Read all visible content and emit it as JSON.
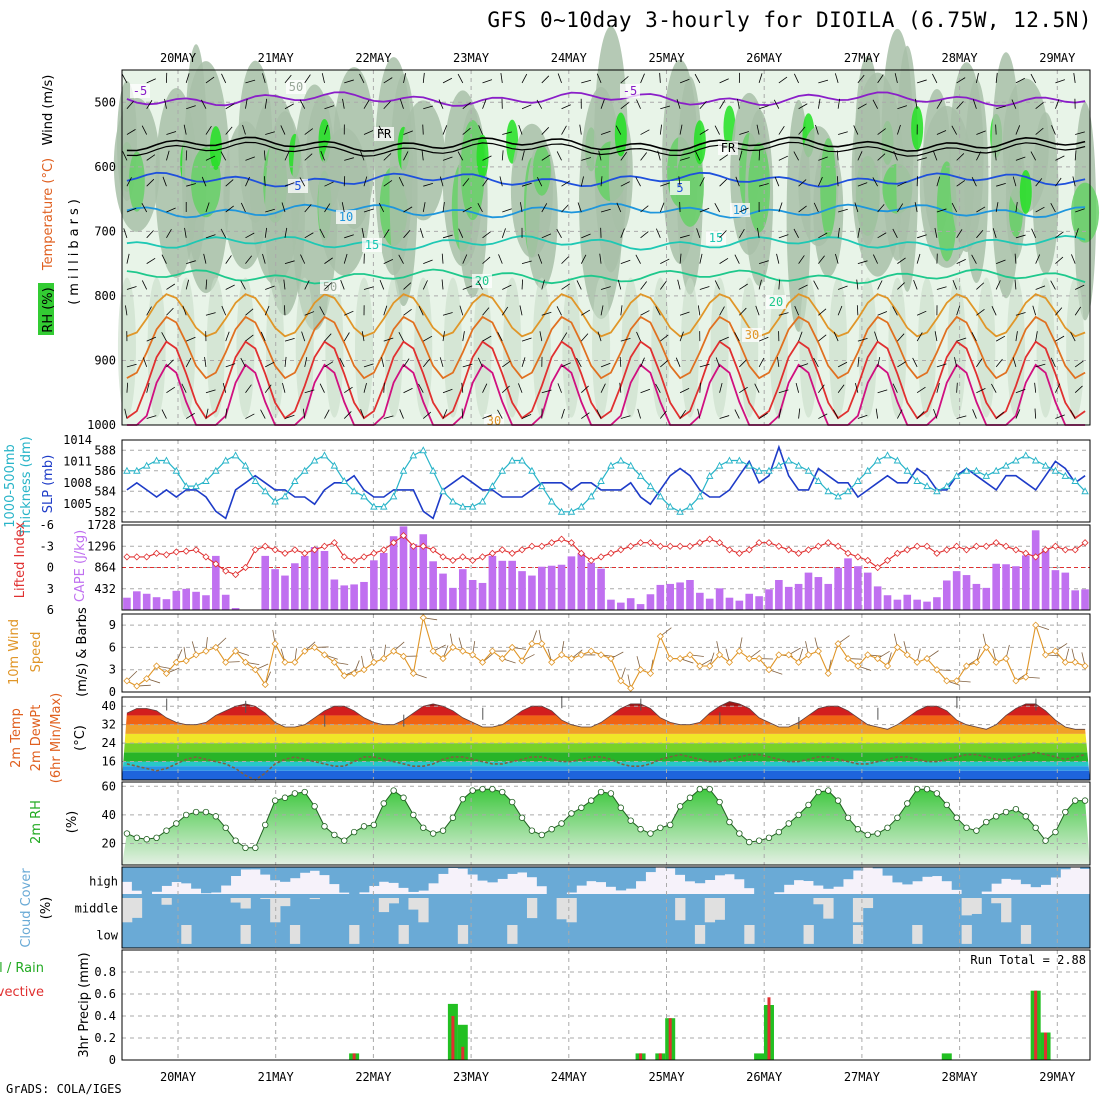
{
  "title": "GFS 0~10day 3-hourly for DIOILA (6.75W, 12.5N)",
  "footer": "GrADS: COLA/IGES",
  "colors": {
    "rh_light": "#e8f4e8",
    "rh_mid": "#c8dcc8",
    "rh_dark": "#a8c0a8",
    "rh_green": "#66d066",
    "rh_bright": "#22e022",
    "slp": "#1e3cc8",
    "thickness": "#28b4c8",
    "cape": "#c070f0",
    "lifted": "#e03030",
    "wind": "#e09628",
    "dewpt": "#806040",
    "cloud": "#6aaad6",
    "cloud_clear": "#e0e0e0",
    "precip_total": "#22c022",
    "precip_conv": "#e03030"
  },
  "chart_data": [
    {
      "type": "line",
      "panel": "upper-air",
      "title": "",
      "ylabel_parts": [
        "RH (%)",
        "Temperature (°C)",
        "Wind (m/s)"
      ],
      "ylabel_unit": "(millibars)",
      "x_ticks": [
        "20MAY",
        "21MAY",
        "22MAY",
        "23MAY",
        "24MAY",
        "25MAY",
        "26MAY",
        "27MAY",
        "28MAY",
        "29MAY"
      ],
      "y_ticks": [
        500,
        600,
        700,
        800,
        900,
        1000
      ],
      "ylim": [
        1000,
        450
      ],
      "contour_labels": [
        "-5",
        "-5",
        "FR",
        "FR",
        "5",
        "5",
        "10",
        "10",
        "15",
        "15",
        "20",
        "20",
        "30",
        "30",
        "50",
        "50"
      ],
      "isotherms": [
        {
          "label": "-5",
          "mb": 495
        },
        {
          "label": "FR",
          "mb": 565
        },
        {
          "label": "5",
          "mb": 620
        },
        {
          "label": "10",
          "mb": 668
        },
        {
          "label": "15",
          "mb": 718
        },
        {
          "label": "20",
          "mb": 770
        }
      ]
    },
    {
      "type": "line",
      "panel": "thickness-slp",
      "ylabel_left": "1000-500mb Thickness (dm)",
      "ylabel_right": "SLP (mb)",
      "left_ticks": [
        582,
        584,
        586,
        588
      ],
      "right_ticks": [
        1005,
        1008,
        1011,
        1014
      ],
      "slp": [
        1007,
        1008,
        1007,
        1006,
        1007,
        1006,
        1007,
        1007,
        1006,
        1004,
        1003,
        1007,
        1008,
        1009,
        1008,
        1007,
        1007,
        1006,
        1006,
        1005,
        1007,
        1008,
        1008,
        1009,
        1007,
        1006,
        1006,
        1007,
        1007,
        1007,
        1004,
        1003,
        1007,
        1008,
        1009,
        1008,
        1007,
        1007,
        1006,
        1006,
        1006,
        1007,
        1008,
        1008,
        1008,
        1007,
        1008,
        1008,
        1007,
        1007,
        1007,
        1008,
        1006,
        1005,
        1007,
        1009,
        1010,
        1009,
        1007,
        1006,
        1006,
        1007,
        1009,
        1011,
        1008,
        1009,
        1013,
        1009,
        1007,
        1007,
        1010,
        1009,
        1008,
        1008,
        1006,
        1007,
        1008,
        1009,
        1008,
        1008,
        1010,
        1009,
        1007,
        1007,
        1009,
        1010,
        1009,
        1008,
        1007,
        1009,
        1009,
        1008,
        1007,
        1009,
        1011,
        1010,
        1008,
        1009
      ],
      "thickness": [
        586,
        586,
        586.5,
        587,
        587,
        586,
        584.5,
        584.5,
        585,
        586,
        587,
        587.5,
        586.5,
        585,
        584,
        583,
        583.5,
        585,
        586,
        587,
        587.5,
        586.5,
        585,
        584,
        583.5,
        582.5,
        582.5,
        583.5,
        586,
        587.5,
        588,
        586,
        584,
        583,
        582.5,
        582.5,
        583,
        584.5,
        586,
        587,
        587,
        586,
        584.5,
        583,
        582,
        582,
        582.5,
        583.5,
        585,
        586.5,
        587,
        586.5,
        585.5,
        584.5,
        583.5,
        582.5,
        582,
        582.5,
        583.5,
        585.5,
        586.5,
        587,
        587,
        586.5,
        586,
        586,
        586.5,
        587,
        586.5,
        586,
        585,
        584,
        583.5,
        584,
        585,
        586,
        587,
        587.5,
        587,
        586,
        585,
        584.5,
        584,
        584.5,
        585.5,
        586,
        586,
        585.5,
        586,
        586.5,
        587,
        587.5,
        587,
        586.5,
        586,
        585.5,
        585,
        584
      ]
    },
    {
      "type": "bar",
      "panel": "cape-lifted",
      "ylabel_left": "Lifted Index",
      "ylabel_right": "CAPE (J/kg)",
      "left_ticks": [
        -6,
        -3,
        0,
        3,
        6
      ],
      "right_ticks": [
        432,
        864,
        1296,
        1728
      ],
      "cape": [
        250,
        380,
        330,
        260,
        220,
        390,
        430,
        370,
        300,
        1100,
        310,
        40,
        0,
        0,
        1100,
        830,
        700,
        950,
        1100,
        1280,
        1200,
        620,
        500,
        520,
        570,
        1010,
        1160,
        1500,
        1700,
        1340,
        1540,
        990,
        740,
        450,
        830,
        610,
        550,
        1100,
        1000,
        1000,
        790,
        700,
        880,
        900,
        920,
        1090,
        1150,
        960,
        840,
        210,
        150,
        240,
        120,
        320,
        510,
        530,
        560,
        610,
        350,
        230,
        440,
        250,
        190,
        330,
        280,
        420,
        610,
        470,
        530,
        760,
        670,
        530,
        860,
        1050,
        890,
        760,
        480,
        300,
        210,
        310,
        210,
        170,
        260,
        600,
        790,
        710,
        530,
        450,
        940,
        930,
        890,
        1110,
        1620,
        1250,
        810,
        760,
        400,
        420
      ],
      "lifted": [
        -1.5,
        -1.5,
        -1.5,
        -2,
        -1.8,
        -2.2,
        -2.3,
        -2.5,
        -1.5,
        -0.5,
        0.5,
        1,
        0,
        -2.5,
        -3,
        -2.5,
        -2,
        -2.5,
        -2,
        -2.5,
        -3,
        -3.5,
        -1.5,
        -1,
        -1.5,
        -2,
        -2.5,
        -3.5,
        -4.5,
        -3,
        -3,
        -2.5,
        -1.5,
        -1,
        -1.5,
        -1,
        -1.5,
        -2,
        -2.5,
        -2,
        -2.5,
        -3,
        -3,
        -3.5,
        -4,
        -3.5,
        -2,
        -1,
        -1.5,
        -2,
        -2.5,
        -3,
        -3.5,
        -3.5,
        -3,
        -3,
        -3,
        -3,
        -3.5,
        -4,
        -3.5,
        -2.5,
        -2,
        -2.5,
        -3.5,
        -3.5,
        -3,
        -2.5,
        -2,
        -2.5,
        -3,
        -3.5,
        -3,
        -2,
        -1.5,
        -1,
        0,
        -1,
        -2,
        -2.5,
        -3,
        -3,
        -2,
        -2.5,
        -3,
        -2.5,
        -3,
        -3,
        -3.5,
        -3,
        -2.5,
        -2,
        -1.5,
        -2.5,
        -3,
        -2.5,
        -2.5,
        -3.5
      ]
    },
    {
      "type": "line",
      "panel": "10m-wind",
      "ylabel": "10m Wind Speed (m/s) & Barbs",
      "y_ticks": [
        0,
        3,
        6,
        9
      ],
      "speed": [
        1.5,
        0.8,
        1.8,
        3.5,
        2.5,
        4,
        4.2,
        5,
        5.5,
        6,
        4,
        5.5,
        4,
        3,
        1,
        6.5,
        4,
        4,
        5.5,
        6,
        5,
        4,
        2.2,
        2.5,
        3,
        4,
        4.5,
        5.5,
        4.8,
        2.5,
        10,
        5.5,
        4.5,
        6,
        5.5,
        5,
        4,
        5.5,
        4.5,
        6,
        4.2,
        6.5,
        6.5,
        4,
        5,
        4.5,
        5,
        5.5,
        5,
        4.5,
        1.5,
        0.5,
        3,
        2.5,
        7.5,
        4.5,
        4.5,
        5,
        3.5,
        3.5,
        5,
        4,
        5.5,
        4.5,
        4.5,
        3,
        5,
        5,
        4,
        5,
        5.5,
        2.5,
        6.5,
        4.5,
        3.5,
        5,
        4.5,
        3.5,
        6,
        5,
        4,
        4.5,
        3,
        1.5,
        1.5,
        3.5,
        4,
        6,
        4,
        4.5,
        1.5,
        2,
        9,
        5,
        5.5,
        4,
        4,
        3.5
      ]
    },
    {
      "type": "area",
      "panel": "2m-temp",
      "ylabel": "2m Temp 2m DewPt (6hr Min/Max) (°C)",
      "y_ticks": [
        16,
        24,
        32,
        40
      ],
      "temp": [
        37,
        39,
        39,
        38,
        35,
        33,
        32,
        32,
        33,
        36,
        38,
        40,
        41,
        40,
        37,
        33,
        31,
        31,
        32,
        35,
        38,
        40,
        40,
        38,
        35,
        33,
        32,
        32,
        34,
        37,
        40,
        41,
        40,
        38,
        35,
        33,
        31,
        31,
        32,
        35,
        38,
        40,
        40,
        38,
        34,
        32,
        31,
        31,
        33,
        36,
        39,
        41,
        41,
        39,
        35,
        33,
        32,
        32,
        33,
        37,
        40,
        42,
        41,
        39,
        35,
        33,
        31,
        31,
        33,
        36,
        39,
        40,
        40,
        38,
        35,
        32,
        31,
        30,
        32,
        35,
        38,
        40,
        40,
        38,
        34,
        32,
        31,
        30,
        32,
        36,
        39,
        41,
        41,
        38,
        34,
        31,
        30,
        30
      ],
      "dewpt": [
        15,
        14,
        13,
        12,
        13,
        15,
        17,
        18,
        17,
        16,
        15,
        13,
        10,
        8,
        11,
        15,
        17,
        18,
        17,
        16,
        15,
        14,
        14,
        16,
        18,
        18,
        17,
        16,
        15,
        14,
        14,
        15,
        17,
        18,
        18,
        17,
        16,
        15,
        15,
        16,
        17,
        18,
        18,
        17,
        16,
        16,
        17,
        18,
        18,
        17,
        15,
        14,
        14,
        15,
        17,
        18,
        19,
        18,
        17,
        16,
        16,
        17,
        18,
        19,
        19,
        18,
        17,
        16,
        16,
        17,
        18,
        18,
        17,
        16,
        15,
        15,
        16,
        17,
        18,
        18,
        17,
        16,
        16,
        17,
        18,
        19,
        19,
        18,
        17,
        17,
        18,
        19,
        20,
        19,
        18,
        17,
        18,
        19
      ]
    },
    {
      "type": "area",
      "panel": "2m-rh",
      "ylabel": "2m RH (%)",
      "y_ticks": [
        20,
        40,
        60
      ],
      "rh": [
        27,
        24,
        23,
        24,
        29,
        34,
        40,
        42,
        42,
        39,
        31,
        22,
        17,
        17,
        33,
        50,
        52,
        55,
        56,
        46,
        32,
        26,
        22,
        28,
        32,
        33,
        48,
        57,
        52,
        40,
        31,
        27,
        29,
        38,
        51,
        57,
        58,
        58,
        56,
        49,
        38,
        29,
        26,
        30,
        34,
        41,
        45,
        50,
        56,
        55,
        45,
        36,
        30,
        27,
        31,
        33,
        46,
        52,
        58,
        58,
        49,
        35,
        27,
        21,
        22,
        24,
        28,
        34,
        40,
        47,
        56,
        57,
        50,
        38,
        30,
        26,
        27,
        31,
        38,
        48,
        58,
        58,
        55,
        47,
        38,
        31,
        29,
        35,
        39,
        42,
        44,
        39,
        31,
        22,
        28,
        42,
        50,
        50
      ]
    },
    {
      "type": "heatmap",
      "panel": "cloud-cover",
      "ylabel": "Cloud Cover (%)",
      "rows": [
        "high",
        "middle",
        "low"
      ]
    },
    {
      "type": "bar",
      "panel": "precip",
      "ylabel": "3hr Precip (mm)",
      "legend_total": "Total / Rain",
      "legend_conv": "Convective",
      "run_total_label": "Run Total = 2.88",
      "y_ticks": [
        0,
        0.2,
        0.4,
        0.6,
        0.8
      ],
      "ylim": [
        0,
        1.0
      ],
      "bars": [
        {
          "i": 23,
          "total": 0.06,
          "conv": 0.06
        },
        {
          "i": 33,
          "total": 0.51,
          "conv": 0.4
        },
        {
          "i": 34,
          "total": 0.32,
          "conv": 0.12
        },
        {
          "i": 52,
          "total": 0.06,
          "conv": 0.06
        },
        {
          "i": 54,
          "total": 0.06,
          "conv": 0.06
        },
        {
          "i": 55,
          "total": 0.38,
          "conv": 0.38
        },
        {
          "i": 64,
          "total": 0.06,
          "conv": 0.0
        },
        {
          "i": 65,
          "total": 0.5,
          "conv": 0.57
        },
        {
          "i": 83,
          "total": 0.06,
          "conv": 0.0
        },
        {
          "i": 92,
          "total": 0.63,
          "conv": 0.63
        },
        {
          "i": 93,
          "total": 0.25,
          "conv": 0.25
        }
      ]
    }
  ],
  "panel_labels": {
    "upper": {
      "rh": "RH (%)",
      "temp": "Temperature (°C)",
      "wind": "Wind (m/s)",
      "mb": "(millibars)"
    },
    "thick": {
      "a": "1000-500mb",
      "b": "Thickness (dm)",
      "slp": "SLP (mb)"
    },
    "cape": {
      "li": "Lifted Index",
      "cape": "CAPE (J/kg)"
    },
    "wind10": {
      "a": "10m Wind",
      "b": "Speed",
      "c": "(m/s) & Barbs"
    },
    "temp2": {
      "a": "2m Temp",
      "b": "2m DewPt",
      "c": "(6hr Min/Max)",
      "d": "(°C)"
    },
    "rh2": {
      "a": "2m RH",
      "b": "(%)"
    },
    "cloud": {
      "a": "Cloud Cover",
      "b": "(%)"
    },
    "precip": {
      "a": "Total / Rain",
      "b": "Convective",
      "c": "3hr Precip (mm)"
    }
  }
}
